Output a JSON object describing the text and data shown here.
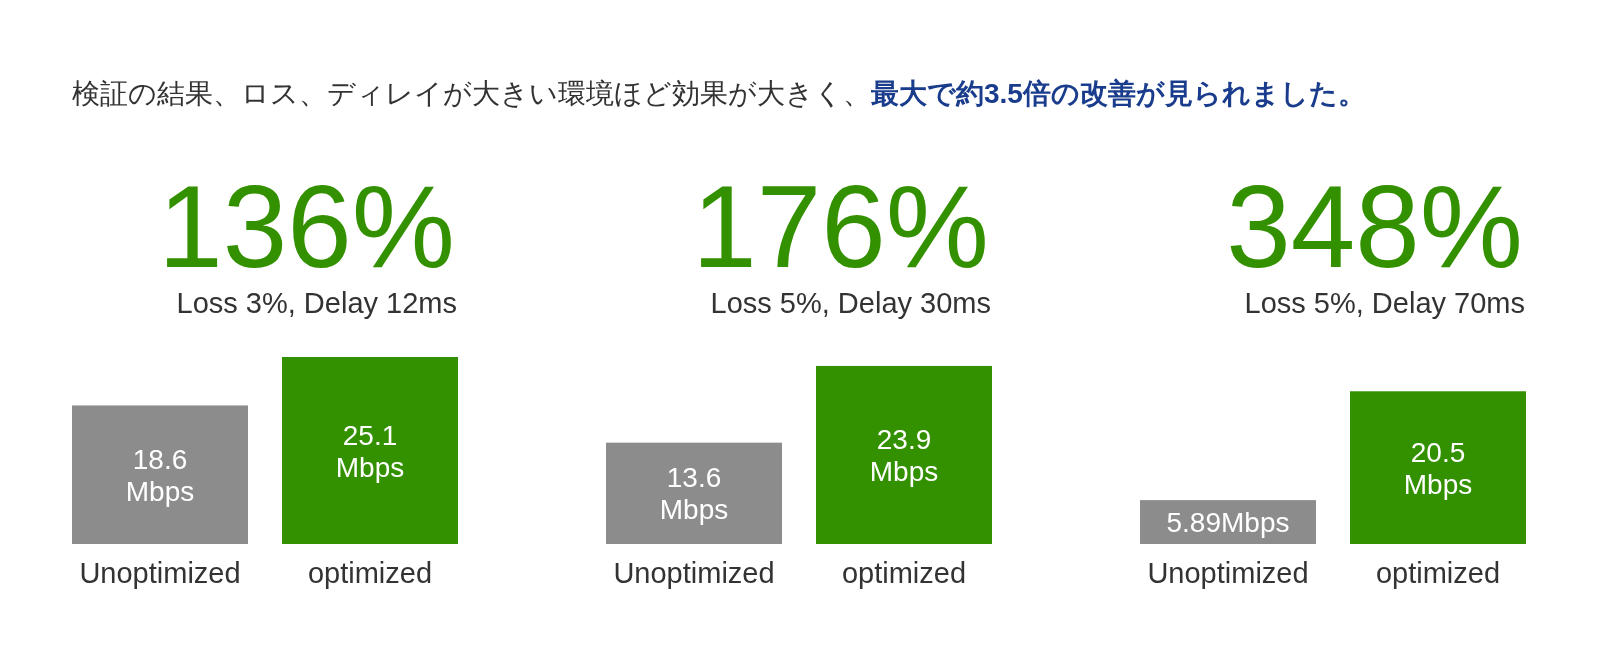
{
  "chart_data": [
    {
      "type": "other",
      "title": "検証の結果、ロス、ディレイが大きい環境ほど効果が大きく、**最大で約3.5倍の改善が見られました。**",
      "color": "#1a3c8c"
    },
    {
      "type": "bar",
      "title": "136%",
      "subtitle": "Loss 3%, Delay 12ms",
      "categories": [
        "Unoptimized",
        "optimized"
      ],
      "values": [
        18.6,
        25.1
      ],
      "colors": [
        "#8c8c8c",
        "#339100"
      ],
      "value_labels": [
        "18.6 Mbps",
        "25.1 Mbps"
      ]
    },
    {
      "type": "bar",
      "title": "176%",
      "subtitle": "Loss 5%, Delay 30ms",
      "categories": [
        "Unoptimized",
        "optimized"
      ],
      "values": [
        13.6,
        23.9
      ],
      "colors": [
        "#8c8c8c",
        "#339100"
      ],
      "value_labels": [
        "13.6 Mbps",
        "23.9 Mbps"
      ]
    },
    {
      "type": "bar",
      "title": "348%",
      "subtitle": "Loss 5%, Delay 70ms",
      "categories": [
        "Unoptimized",
        "optimized"
      ],
      "values": [
        5.89,
        20.5
      ],
      "colors": [
        "#8c8c8c",
        "#339100"
      ],
      "value_labels": [
        "5.89Mbps",
        "20.5 Mbps"
      ]
    }
  ]
}
